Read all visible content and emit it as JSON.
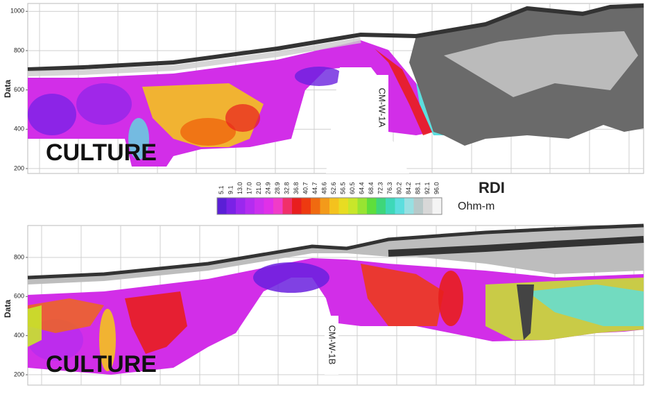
{
  "chart_data": [
    {
      "type": "section",
      "y_label": "Data",
      "annotations": [
        "CULTURE",
        "CM-W-1A"
      ],
      "ylim": [
        175,
        1040
      ],
      "yticks": [
        200,
        400,
        600,
        800,
        1000
      ],
      "grid": true
    },
    {
      "type": "section",
      "y_label": "Data",
      "annotations": [
        "CULTURE",
        "CM-W-1B"
      ],
      "ylim": [
        147,
        963
      ],
      "yticks": [
        200,
        400,
        600,
        800
      ],
      "grid": true
    }
  ],
  "colorbar": {
    "title": "RDI",
    "unit": "Ohm-m",
    "ticks": [
      5.1,
      9.1,
      {
        "value": 13,
        "label": "13.0"
      },
      {
        "value": 17,
        "label": "17.0"
      },
      {
        "value": 21,
        "label": "21.0"
      },
      24.9,
      28.9,
      32.8,
      36.8,
      40.7,
      44.7,
      48.6,
      52.6,
      56.5,
      60.5,
      64.4,
      68.4,
      72.3,
      76.3,
      80.2,
      84.2,
      88.1,
      92.1,
      {
        "value": 96,
        "label": "96.0"
      }
    ],
    "colors": [
      "#5a1fd6",
      "#7a22e6",
      "#9a28ee",
      "#b42cf0",
      "#cc30ee",
      "#e030e8",
      "#f03cc8",
      "#f0306a",
      "#e81e1e",
      "#ee3a10",
      "#f06a10",
      "#f39a1a",
      "#f4c21e",
      "#e8dc22",
      "#c8e62a",
      "#98e432",
      "#5ede3c",
      "#3ed67a",
      "#3ed8b8",
      "#5cdede",
      "#98e0e2",
      "#b8c8c8",
      "#d8d8d8",
      "#f4f4f4"
    ]
  }
}
